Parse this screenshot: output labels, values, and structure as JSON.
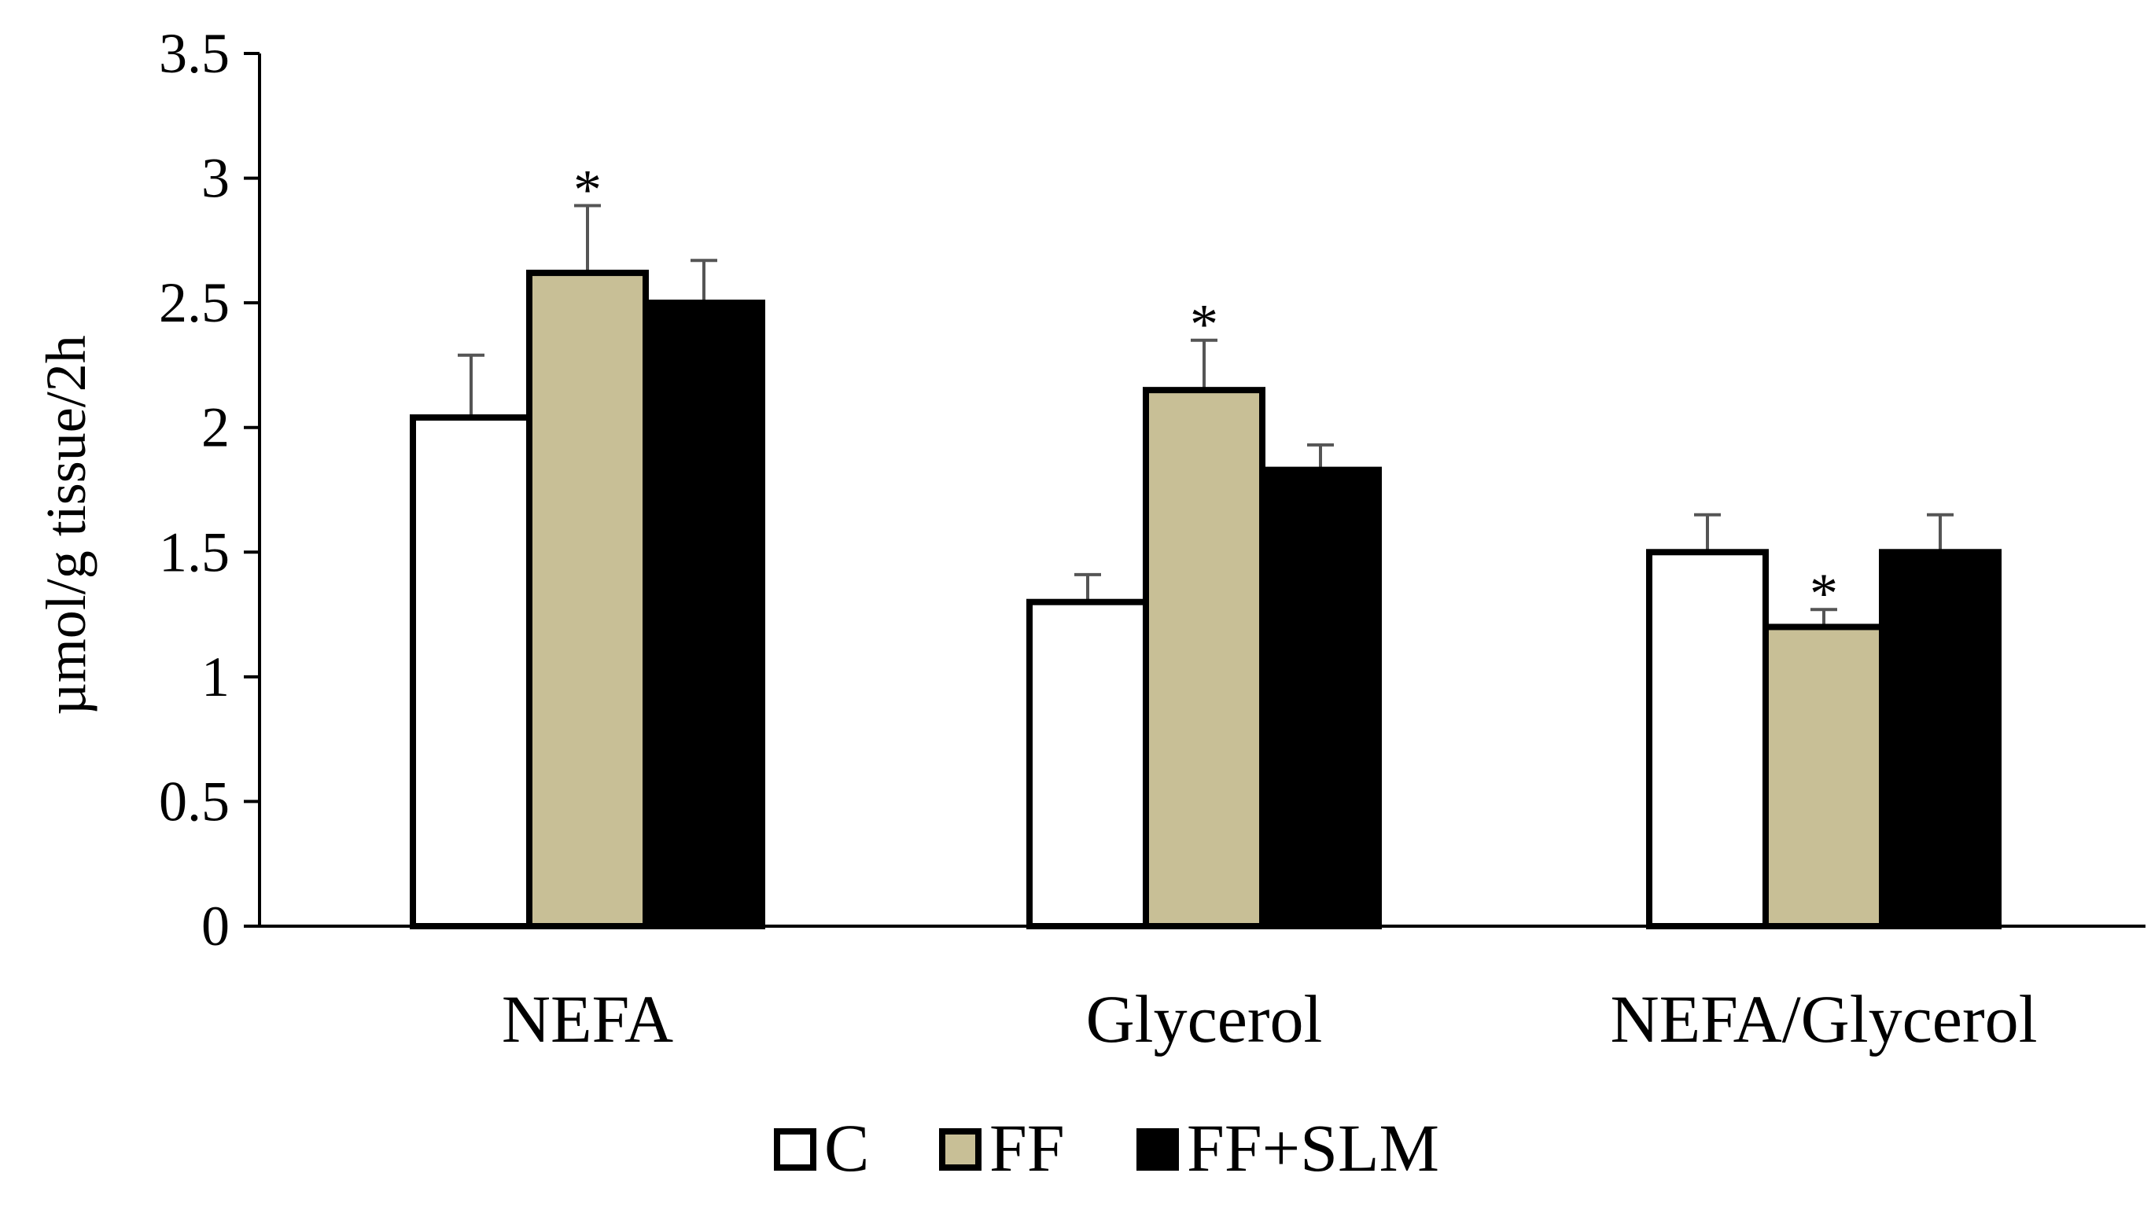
{
  "chart_data": {
    "type": "bar",
    "title": "",
    "xlabel": "",
    "ylabel": "µmol/g tissue/2h",
    "ylim": [
      0,
      3.5
    ],
    "yticks": [
      "0",
      "0.5",
      "1",
      "1.5",
      "2",
      "2.5",
      "3",
      "3.5"
    ],
    "categories": [
      "NEFA",
      "Glycerol",
      "NEFA/Glycerol"
    ],
    "series": [
      {
        "name": "C",
        "color": "#ffffff",
        "values": [
          2.04,
          1.3,
          1.5
        ],
        "errors": [
          0.25,
          0.11,
          0.15
        ]
      },
      {
        "name": "FF",
        "color": "#c8bf96",
        "values": [
          2.62,
          2.15,
          1.2
        ],
        "errors": [
          0.27,
          0.2,
          0.07
        ]
      },
      {
        "name": "FF+SLM",
        "color": "#000000",
        "values": [
          2.5,
          1.83,
          1.5
        ],
        "errors": [
          0.17,
          0.1,
          0.15
        ]
      }
    ],
    "annotations": [
      {
        "category": "NEFA",
        "series": "FF",
        "text": "*"
      },
      {
        "category": "Glycerol",
        "series": "FF",
        "text": "*"
      },
      {
        "category": "NEFA/Glycerol",
        "series": "FF",
        "text": "*"
      }
    ],
    "legend": {
      "position": "bottom"
    }
  }
}
